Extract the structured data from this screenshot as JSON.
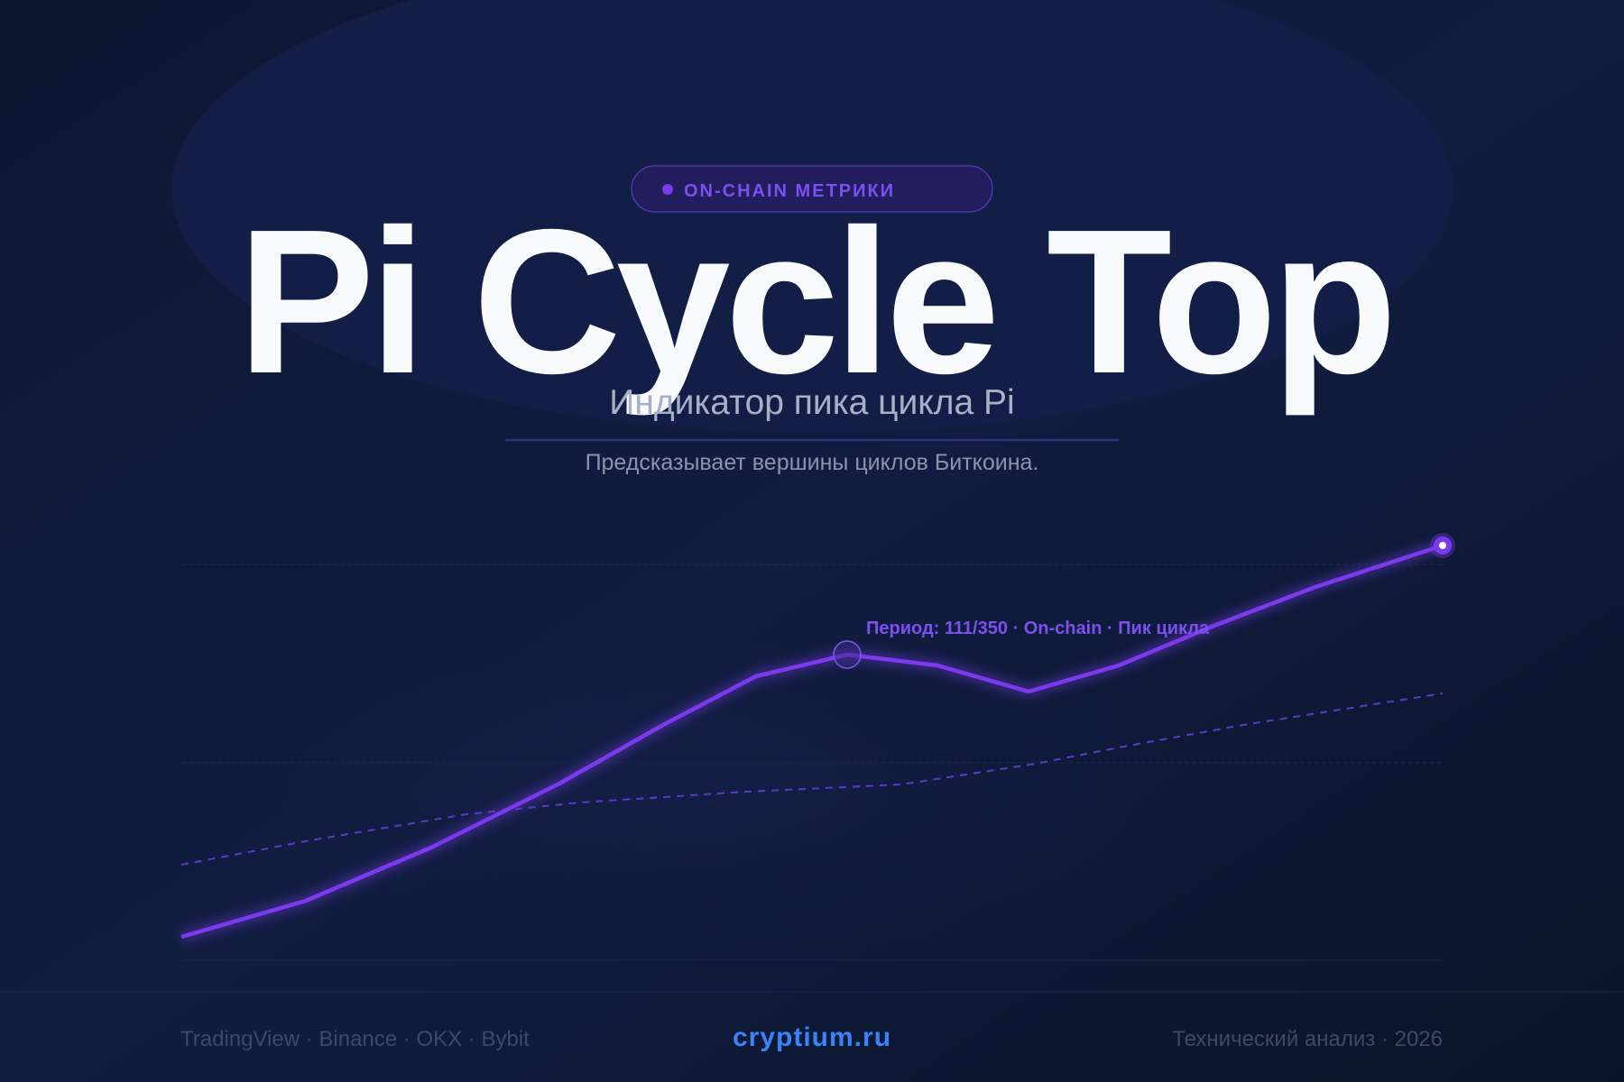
{
  "badge": "ON-CHAIN МЕТРИКИ",
  "title": "Pi Cycle Top",
  "subtitle": "Индикатор пика цикла Pi",
  "description": "Предсказывает вершины циклов Биткоина.",
  "annotation": "Период: 111/350 · On-chain · Пик цикла",
  "footer": {
    "sources": "TradingView · Binance · OKX · Bybit",
    "brand": "cryptium.ru",
    "right": "Технический анализ · 2026"
  }
}
